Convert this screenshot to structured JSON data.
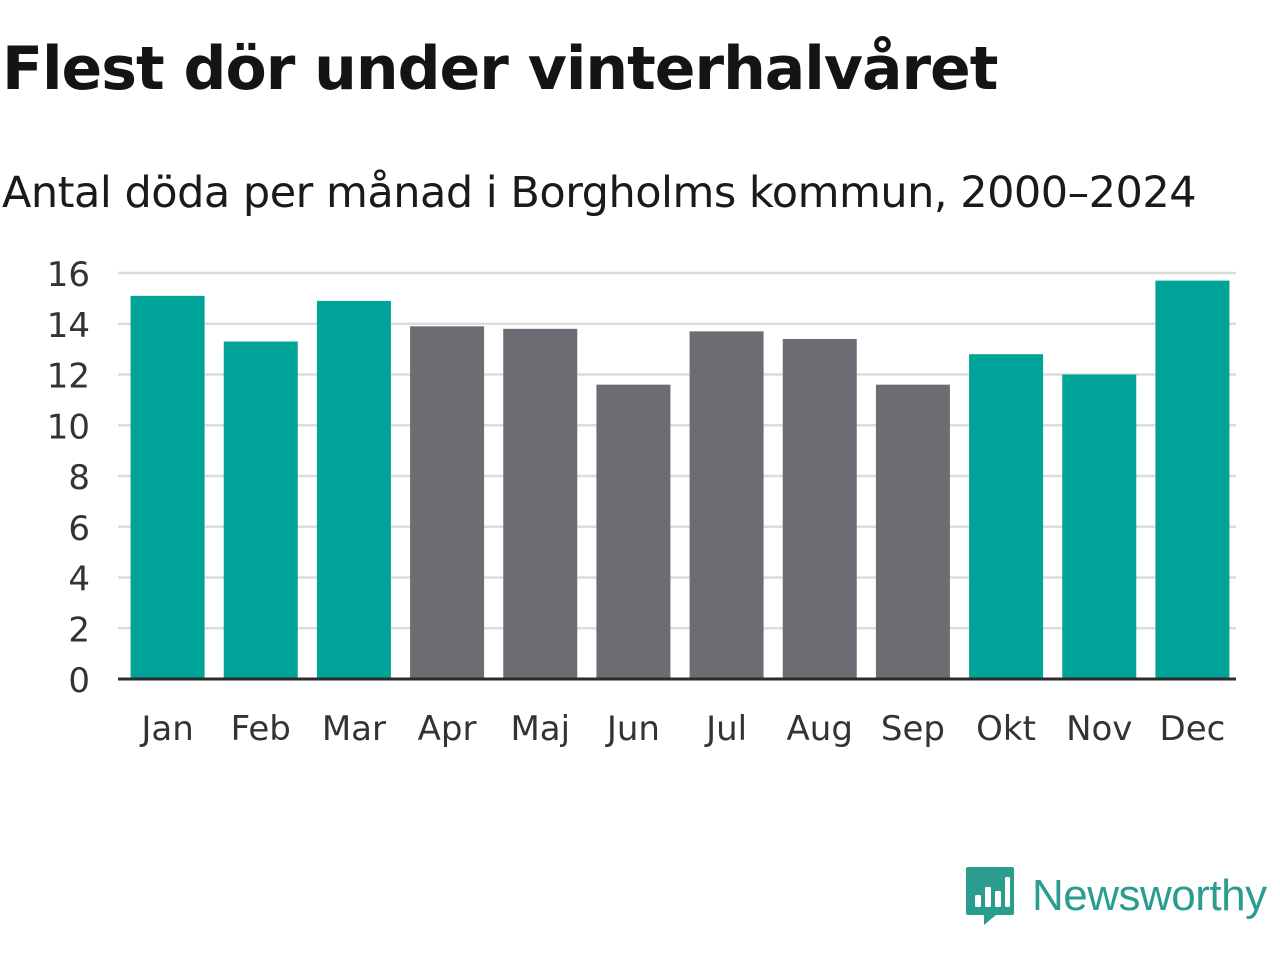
{
  "chart_data": {
    "type": "bar",
    "title": "Flest dör under vinterhalvåret",
    "subtitle": "Antal döda per månad i Borgholms kommun, 2000–2024",
    "categories": [
      "Jan",
      "Feb",
      "Mar",
      "Apr",
      "Maj",
      "Jun",
      "Jul",
      "Aug",
      "Sep",
      "Okt",
      "Nov",
      "Dec"
    ],
    "values": [
      15.1,
      13.3,
      14.9,
      13.9,
      13.8,
      11.6,
      13.7,
      13.4,
      11.6,
      12.8,
      12.0,
      15.7
    ],
    "highlight": [
      true,
      true,
      true,
      false,
      false,
      false,
      false,
      false,
      false,
      true,
      true,
      true
    ],
    "ylim": [
      0,
      16
    ],
    "yticks": [
      0,
      2,
      4,
      6,
      8,
      10,
      12,
      14,
      16
    ],
    "xlabel": "",
    "ylabel": "",
    "grid": true,
    "colors": {
      "highlight": "#00a398",
      "normal": "#6d6c73",
      "grid": "#dcdcdc",
      "axis": "#2b2b2b",
      "text": "#333333"
    }
  },
  "brand": {
    "name": "Newsworthy",
    "color": "#2a9d8f"
  }
}
